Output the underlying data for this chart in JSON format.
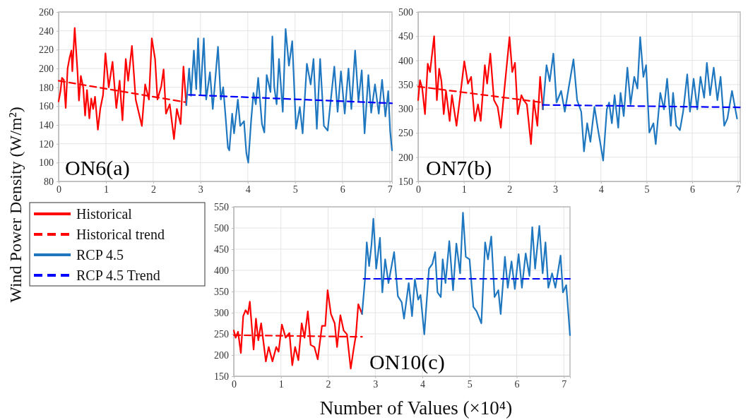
{
  "chart_data": [
    {
      "type": "line",
      "ylabel": "Wind Power Density (W/m²)",
      "annotations": [
        "ON6(a)"
      ],
      "xlim": [
        0,
        7.05
      ],
      "xticks": [
        0,
        1,
        2,
        3,
        4,
        5,
        6,
        7
      ],
      "ylim": [
        80,
        260
      ],
      "yticks": [
        80,
        100,
        120,
        140,
        160,
        180,
        200,
        220,
        240,
        260
      ],
      "grid": true,
      "legend": false,
      "series": [
        {
          "color": "#ff0000",
          "line_style": "solid",
          "x": [
            0,
            0.04,
            0.07,
            0.11,
            0.15,
            0.19,
            0.23,
            0.27,
            0.29,
            0.34,
            0.4,
            0.43,
            0.47,
            0.52,
            0.56,
            0.6,
            0.65,
            0.69,
            0.73,
            0.77,
            0.83,
            0.88,
            0.94,
            0.99,
            1.06,
            1.14,
            1.22,
            1.29,
            1.35,
            1.42,
            1.47,
            1.55,
            1.63,
            1.76,
            1.83,
            1.91,
            1.97,
            2.04,
            2.09,
            2.17,
            2.22,
            2.27,
            2.35,
            2.44,
            2.5,
            2.58,
            2.64,
            2.7
          ],
          "values": [
            165,
            176,
            190,
            188,
            158,
            200,
            211,
            219,
            197,
            243,
            196,
            166,
            192,
            180,
            150,
            177,
            147,
            168,
            157,
            170,
            135,
            157,
            172,
            216,
            180,
            207,
            158,
            187,
            145,
            210,
            187,
            224,
            167,
            139,
            183,
            167,
            232,
            210,
            167,
            181,
            199,
            152,
            162,
            125,
            157,
            141,
            202,
            161
          ]
        },
        {
          "color": "#ff0000",
          "line_style": "dashed",
          "x": [
            0,
            2.7
          ],
          "values": [
            187,
            164
          ]
        },
        {
          "color": "#1f77c0",
          "line_style": "solid",
          "x": [
            2.7,
            2.76,
            2.8,
            2.86,
            2.91,
            2.95,
            3.0,
            3.07,
            3.12,
            3.2,
            3.26,
            3.37,
            3.43,
            3.48,
            3.53,
            3.58,
            3.61,
            3.67,
            3.71,
            3.79,
            3.84,
            3.92,
            3.97,
            4.01,
            4.07,
            4.12,
            4.17,
            4.22,
            4.3,
            4.35,
            4.4,
            4.48,
            4.52,
            4.56,
            4.61,
            4.66,
            4.74,
            4.8,
            4.87,
            4.94,
            5.02,
            5.1,
            5.16,
            5.25,
            5.33,
            5.39,
            5.46,
            5.53,
            5.61,
            5.69,
            5.74,
            5.83,
            5.9,
            5.97,
            6.05,
            6.13,
            6.19,
            6.27,
            6.34,
            6.41,
            6.47,
            6.55,
            6.61,
            6.69,
            6.77,
            6.84,
            6.91,
            6.97,
            7.01,
            7.05
          ],
          "values": [
            161,
            200,
            171,
            219,
            178,
            232,
            172,
            232,
            167,
            196,
            157,
            223,
            167,
            180,
            149,
            116,
            113,
            152,
            131,
            167,
            139,
            144,
            110,
            100,
            144,
            174,
            162,
            190,
            141,
            132,
            193,
            175,
            234,
            180,
            162,
            210,
            154,
            242,
            203,
            229,
            136,
            159,
            131,
            205,
            183,
            210,
            136,
            210,
            139,
            134,
            159,
            202,
            154,
            197,
            152,
            200,
            157,
            219,
            165,
            198,
            131,
            193,
            153,
            183,
            152,
            188,
            149,
            176,
            134,
            113
          ]
        },
        {
          "color": "#0000ff",
          "line_style": "dashed",
          "x": [
            2.75,
            7.05
          ],
          "values": [
            172,
            163
          ]
        }
      ]
    },
    {
      "type": "line",
      "annotations": [
        "ON7(b)"
      ],
      "xlim": [
        0,
        7.05
      ],
      "xticks": [
        0,
        1,
        2,
        3,
        4,
        5,
        6,
        7
      ],
      "ylim": [
        150,
        500
      ],
      "yticks": [
        150,
        200,
        250,
        300,
        350,
        400,
        450,
        500
      ],
      "grid": true,
      "legend": false,
      "series": [
        {
          "color": "#ff0000",
          "line_style": "solid",
          "x": [
            0,
            0.04,
            0.09,
            0.15,
            0.21,
            0.26,
            0.31,
            0.35,
            0.41,
            0.46,
            0.51,
            0.56,
            0.61,
            0.69,
            0.74,
            0.84,
            0.91,
            1.01,
            1.09,
            1.16,
            1.24,
            1.31,
            1.37,
            1.46,
            1.51,
            1.58,
            1.66,
            1.74,
            1.81,
            1.89,
            2.0,
            2.06,
            2.12,
            2.18,
            2.26,
            2.31,
            2.38,
            2.47,
            2.53,
            2.61,
            2.67,
            2.73
          ],
          "values": [
            318,
            359,
            342,
            289,
            393,
            376,
            417,
            450,
            318,
            383,
            357,
            289,
            337,
            275,
            328,
            265,
            318,
            398,
            352,
            366,
            275,
            309,
            275,
            390,
            352,
            414,
            318,
            304,
            261,
            342,
            448,
            376,
            395,
            289,
            328,
            318,
            309,
            227,
            318,
            265,
            366,
            299
          ]
        },
        {
          "color": "#ff0000",
          "line_style": "dashed",
          "x": [
            0,
            2.73
          ],
          "values": [
            346,
            313
          ]
        },
        {
          "color": "#1f77c0",
          "line_style": "solid",
          "x": [
            2.73,
            2.81,
            2.88,
            2.96,
            3.03,
            3.13,
            3.21,
            3.31,
            3.4,
            3.48,
            3.57,
            3.63,
            3.7,
            3.77,
            3.86,
            3.93,
            4.0,
            4.05,
            4.13,
            4.18,
            4.24,
            4.3,
            4.38,
            4.43,
            4.5,
            4.58,
            4.65,
            4.73,
            4.8,
            4.86,
            4.93,
            4.99,
            5.06,
            5.15,
            5.2,
            5.3,
            5.38,
            5.45,
            5.53,
            5.58,
            5.65,
            5.73,
            5.8,
            5.89,
            5.95,
            6.03,
            6.11,
            6.18,
            6.26,
            6.32,
            6.39,
            6.47,
            6.55,
            6.62,
            6.7,
            6.77,
            6.87,
            6.98
          ],
          "values": [
            299,
            390,
            357,
            414,
            313,
            337,
            294,
            352,
            402,
            318,
            294,
            212,
            270,
            232,
            304,
            261,
            222,
            193,
            299,
            313,
            270,
            328,
            261,
            333,
            285,
            385,
            309,
            366,
            342,
            448,
            366,
            390,
            251,
            270,
            227,
            333,
            299,
            362,
            265,
            333,
            265,
            256,
            294,
            371,
            294,
            362,
            299,
            366,
            323,
            395,
            328,
            385,
            318,
            366,
            265,
            280,
            337,
            280
          ]
        },
        {
          "color": "#0000ff",
          "line_style": "dashed",
          "x": [
            2.73,
            7.05
          ],
          "values": [
            308,
            303
          ]
        }
      ]
    },
    {
      "type": "line",
      "xlabel": "Number of Values (×10⁴)",
      "annotations": [
        "ON10(c)"
      ],
      "xlim": [
        0,
        7.13
      ],
      "xticks": [
        0,
        1,
        2,
        3,
        4,
        5,
        6,
        7
      ],
      "ylim": [
        150,
        550
      ],
      "yticks": [
        150,
        200,
        250,
        300,
        350,
        400,
        450,
        500,
        550
      ],
      "grid": true,
      "legend": "left",
      "series": [
        {
          "name": "Historical",
          "color": "#ff0000",
          "line_style": "solid",
          "x": [
            0,
            0.04,
            0.09,
            0.15,
            0.2,
            0.25,
            0.3,
            0.34,
            0.42,
            0.47,
            0.52,
            0.58,
            0.63,
            0.68,
            0.74,
            0.82,
            0.9,
            0.95,
            1.02,
            1.1,
            1.18,
            1.24,
            1.3,
            1.37,
            1.44,
            1.5,
            1.57,
            1.63,
            1.71,
            1.78,
            1.87,
            1.94,
            1.99,
            2.06,
            2.14,
            2.19,
            2.26,
            2.33,
            2.4,
            2.48,
            2.54,
            2.59,
            2.64,
            2.72
          ],
          "values": [
            258,
            241,
            255,
            205,
            292,
            306,
            297,
            326,
            213,
            286,
            235,
            275,
            230,
            185,
            219,
            185,
            219,
            208,
            272,
            241,
            252,
            176,
            219,
            188,
            275,
            241,
            303,
            224,
            219,
            190,
            269,
            269,
            353,
            297,
            275,
            219,
            294,
            258,
            249,
            168,
            213,
            247,
            320,
            297
          ]
        },
        {
          "name": "Historical trend",
          "color": "#ff0000",
          "line_style": "dashed",
          "x": [
            0,
            2.72
          ],
          "values": [
            247,
            243
          ]
        },
        {
          "name": "RCP 4.5",
          "color": "#1f77c0",
          "line_style": "solid",
          "x": [
            2.72,
            2.78,
            2.82,
            2.87,
            2.92,
            2.96,
            3.02,
            3.1,
            3.15,
            3.21,
            3.28,
            3.4,
            3.48,
            3.56,
            3.61,
            3.71,
            3.78,
            3.84,
            3.91,
            3.96,
            4.04,
            4.14,
            4.21,
            4.27,
            4.32,
            4.39,
            4.43,
            4.49,
            4.57,
            4.65,
            4.72,
            4.8,
            4.86,
            4.92,
            5.0,
            5.08,
            5.15,
            5.25,
            5.33,
            5.39,
            5.46,
            5.53,
            5.61,
            5.66,
            5.75,
            5.81,
            5.89,
            5.96,
            6.04,
            6.11,
            6.19,
            6.27,
            6.33,
            6.39,
            6.48,
            6.55,
            6.61,
            6.67,
            6.75,
            6.82,
            6.93,
            6.98,
            7.05,
            7.13
          ],
          "values": [
            297,
            376,
            466,
            410,
            460,
            522,
            404,
            477,
            348,
            426,
            370,
            443,
            339,
            325,
            286,
            370,
            292,
            379,
            331,
            342,
            249,
            404,
            415,
            443,
            348,
            337,
            426,
            370,
            469,
            353,
            463,
            393,
            536,
            432,
            426,
            314,
            303,
            275,
            466,
            426,
            480,
            337,
            353,
            297,
            432,
            359,
            421,
            356,
            438,
            359,
            440,
            387,
            502,
            404,
            505,
            393,
            466,
            359,
            393,
            359,
            435,
            348,
            365,
            247
          ]
        },
        {
          "name": "RCP 4.5 Trend",
          "color": "#0000ff",
          "line_style": "dashed",
          "x": [
            2.75,
            7.13
          ],
          "values": [
            380,
            380
          ]
        }
      ]
    }
  ]
}
